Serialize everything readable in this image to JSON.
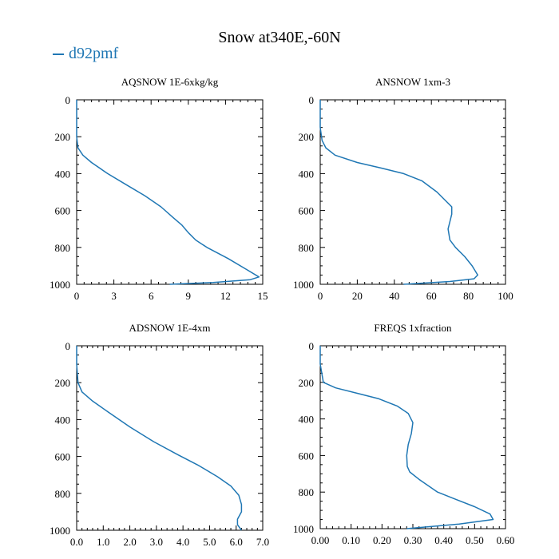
{
  "figure": {
    "title": "Snow at340E,-60N",
    "legend": [
      {
        "label": "d92pmf",
        "color": "#1f77b4"
      }
    ]
  },
  "chart_data": [
    {
      "type": "line",
      "title": "AQSNOW  1E-6xkg/kg",
      "xlim": [
        0,
        15
      ],
      "ylim": [
        1000,
        0
      ],
      "xticks": [
        "0",
        "3",
        "6",
        "9",
        "12",
        "15"
      ],
      "yticks": [
        "0",
        "200",
        "400",
        "600",
        "800",
        "1000"
      ],
      "series": [
        {
          "name": "d92pmf",
          "color": "#1f77b4",
          "x": [
            0.0,
            0.0,
            0.0,
            0.1,
            0.5,
            1.2,
            2.5,
            4.0,
            5.5,
            6.8,
            7.8,
            8.5,
            9.0,
            9.6,
            10.5,
            12.2,
            13.7,
            14.7,
            14.0,
            11.0,
            7.5
          ],
          "y": [
            0,
            100,
            200,
            260,
            300,
            340,
            400,
            460,
            520,
            580,
            640,
            680,
            720,
            760,
            800,
            860,
            920,
            960,
            975,
            990,
            1000
          ]
        }
      ]
    },
    {
      "type": "line",
      "title": "ANSNOW  1xm-3",
      "xlim": [
        0,
        100
      ],
      "ylim": [
        1000,
        0
      ],
      "xticks": [
        "0",
        "20",
        "40",
        "60",
        "80",
        "100"
      ],
      "yticks": [
        "0",
        "200",
        "400",
        "600",
        "800",
        "1000"
      ],
      "series": [
        {
          "name": "d92pmf",
          "color": "#1f77b4",
          "x": [
            0,
            0,
            1,
            3,
            8,
            20,
            33,
            45,
            55,
            63,
            68,
            71,
            71,
            70,
            69,
            70,
            73,
            78,
            82,
            85,
            83,
            70,
            45
          ],
          "y": [
            0,
            150,
            220,
            260,
            300,
            340,
            370,
            400,
            440,
            500,
            550,
            580,
            620,
            660,
            700,
            760,
            800,
            850,
            900,
            950,
            970,
            985,
            1000
          ]
        }
      ]
    },
    {
      "type": "line",
      "title": "ADSNOW  1E-4xm",
      "xlim": [
        0,
        7
      ],
      "ylim": [
        1000,
        0
      ],
      "xticks": [
        "0.0",
        "1.0",
        "2.0",
        "3.0",
        "4.0",
        "5.0",
        "6.0",
        "7.0"
      ],
      "yticks": [
        "0",
        "200",
        "400",
        "600",
        "800",
        "1000"
      ],
      "series": [
        {
          "name": "d92pmf",
          "color": "#1f77b4",
          "x": [
            0.0,
            0.0,
            0.05,
            0.2,
            0.6,
            1.2,
            2.0,
            2.9,
            3.8,
            4.6,
            5.3,
            5.8,
            6.1,
            6.2,
            6.2,
            6.05,
            6.05,
            6.2
          ],
          "y": [
            0,
            100,
            200,
            250,
            300,
            360,
            440,
            520,
            590,
            650,
            710,
            760,
            810,
            860,
            900,
            940,
            970,
            1000
          ]
        }
      ]
    },
    {
      "type": "line",
      "title": "FREQS  1xfraction",
      "xlim": [
        0,
        0.6
      ],
      "ylim": [
        1000,
        0
      ],
      "xticks": [
        "0.00",
        "0.10",
        "0.20",
        "0.30",
        "0.40",
        "0.50",
        "0.60"
      ],
      "yticks": [
        "0",
        "200",
        "400",
        "600",
        "800",
        "1000"
      ],
      "series": [
        {
          "name": "d92pmf",
          "color": "#1f77b4",
          "x": [
            0.0,
            0.0,
            0.01,
            0.05,
            0.12,
            0.19,
            0.25,
            0.285,
            0.3,
            0.295,
            0.285,
            0.28,
            0.282,
            0.29,
            0.32,
            0.38,
            0.44,
            0.5,
            0.55,
            0.56,
            0.45,
            0.28
          ],
          "y": [
            0,
            100,
            200,
            230,
            260,
            290,
            330,
            370,
            420,
            480,
            540,
            600,
            660,
            690,
            730,
            800,
            840,
            880,
            920,
            950,
            975,
            1000
          ]
        }
      ]
    }
  ]
}
